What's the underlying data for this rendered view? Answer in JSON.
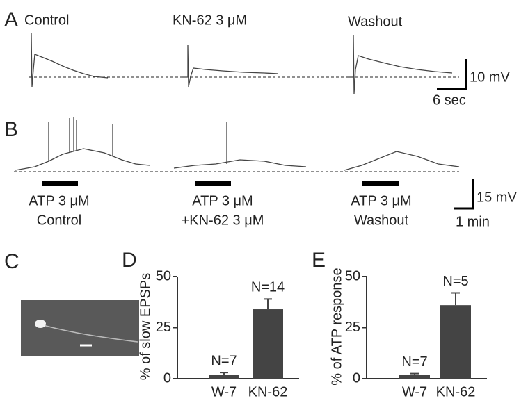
{
  "figure": {
    "panel_labels": [
      "A",
      "B",
      "C"
    ],
    "a": {
      "conditions": [
        "Control",
        "KN-62 3 μM",
        "Washout"
      ],
      "scale_y": "10 mV",
      "scale_x": "6 sec"
    },
    "b": {
      "stimuli": [
        [
          "ATP 3 μM",
          "Control"
        ],
        [
          "ATP 3 μM",
          "+KN-62 3 μM"
        ],
        [
          "ATP 3 μM",
          "Washout"
        ]
      ],
      "scale_y": "15 mV",
      "scale_x": "1 min"
    }
  },
  "chart_data": [
    {
      "type": "bar",
      "panel": "D",
      "ylabel": "% of slow EPSPs",
      "categories": [
        "W-7",
        "KN-62"
      ],
      "values": [
        2,
        34
      ],
      "errors": [
        1,
        5
      ],
      "annotations": [
        "N=7",
        "N=14"
      ],
      "color": "#444444",
      "ylim": [
        0,
        50
      ],
      "yticks": [
        0,
        25,
        50
      ]
    },
    {
      "type": "bar",
      "panel": "E",
      "ylabel": "% of ATP response",
      "categories": [
        "W-7",
        "KN-62"
      ],
      "values": [
        2,
        36
      ],
      "errors": [
        0.5,
        6
      ],
      "annotations": [
        "N=7",
        "N=5"
      ],
      "color": "#444444",
      "ylim": [
        0,
        50
      ],
      "yticks": [
        0,
        25,
        50
      ]
    }
  ]
}
